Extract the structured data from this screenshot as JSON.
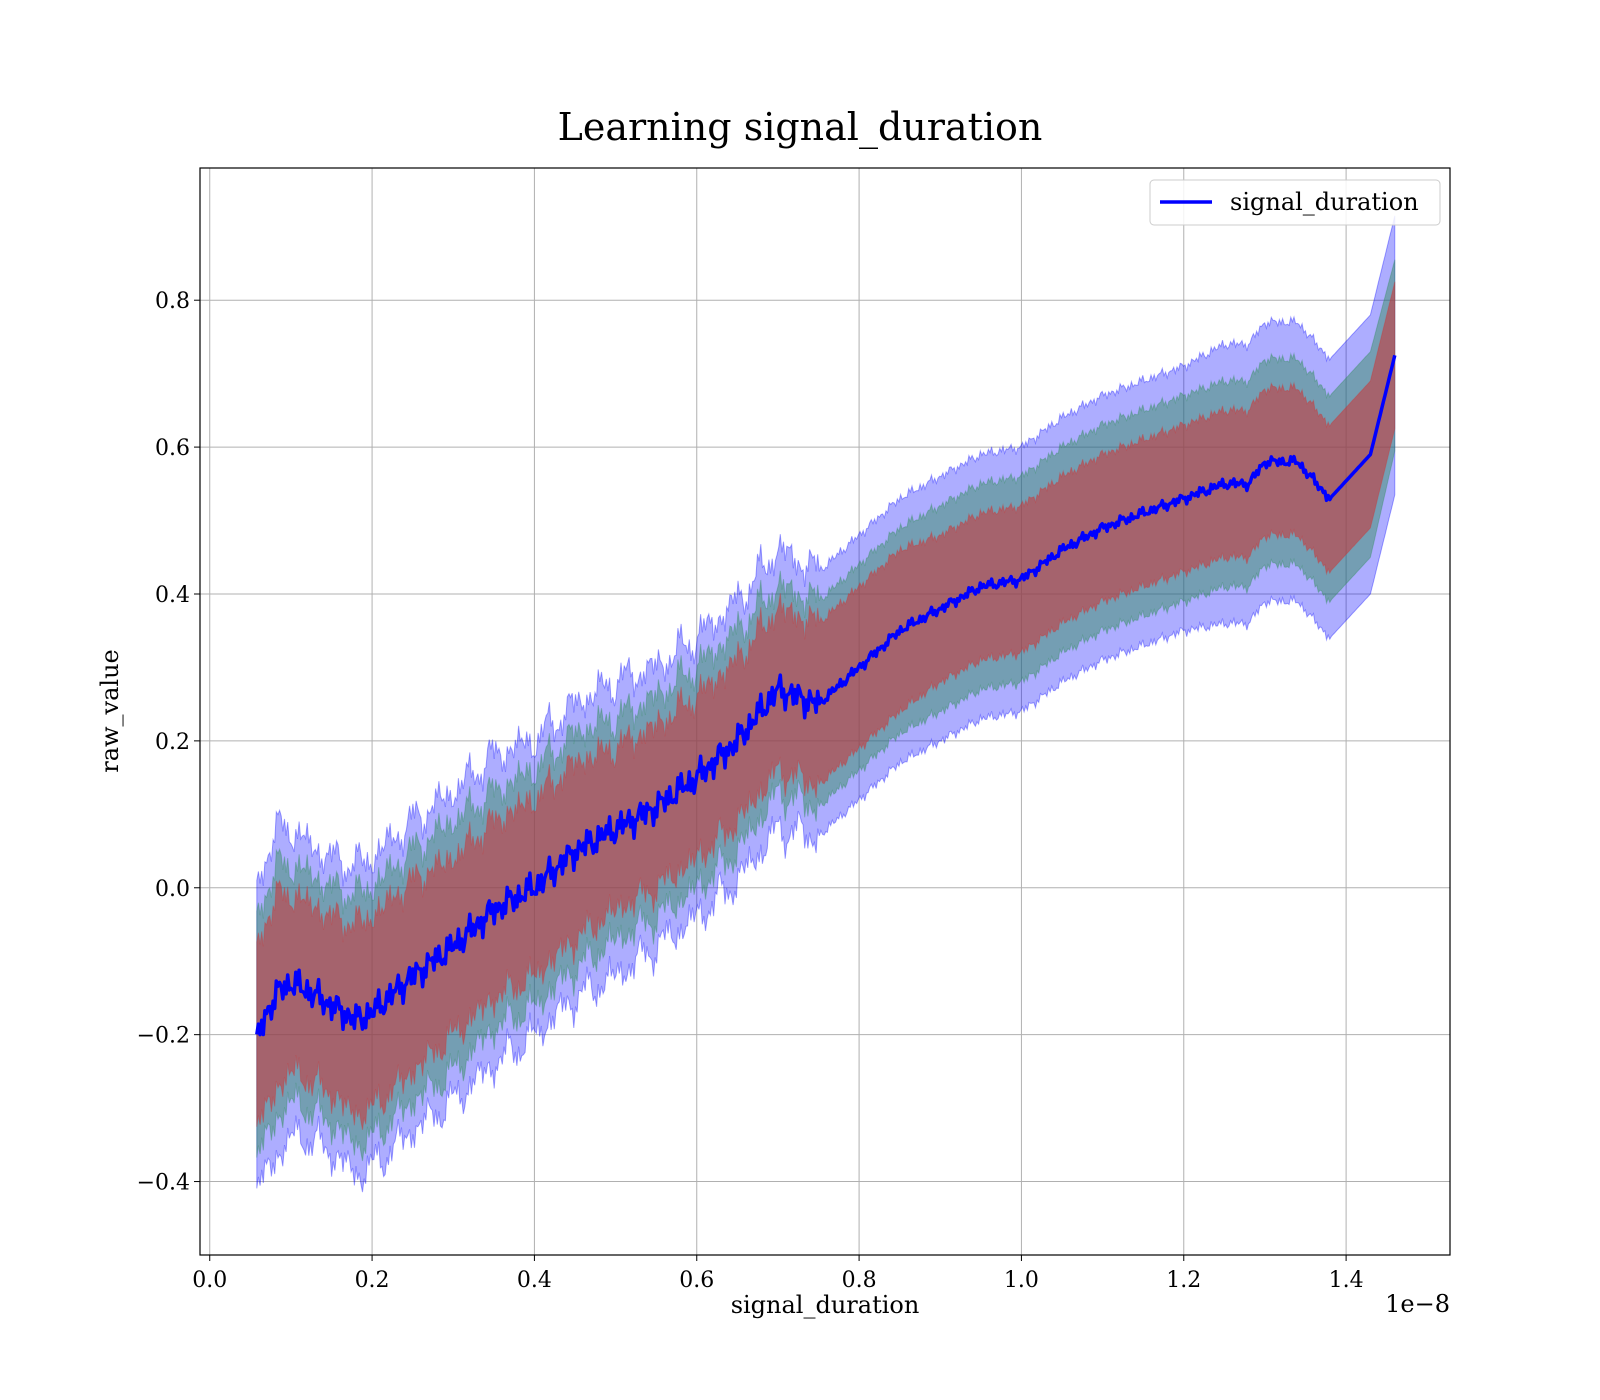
{
  "chart_data": {
    "type": "line",
    "title": "Learning signal_duration",
    "xlabel": "signal_duration",
    "ylabel": "raw_value",
    "x_offset_label": "1e−8",
    "xlim": [
      -0.012,
      1.528
    ],
    "ylim": [
      -0.5,
      0.98
    ],
    "x_ticks": [
      0.0,
      0.2,
      0.4,
      0.6,
      0.8,
      1.0,
      1.2,
      1.4
    ],
    "x_tick_labels": [
      "0.0",
      "0.2",
      "0.4",
      "0.6",
      "0.8",
      "1.0",
      "1.2",
      "1.4"
    ],
    "y_ticks": [
      -0.4,
      -0.2,
      0.0,
      0.2,
      0.4,
      0.6,
      0.8
    ],
    "y_tick_labels": [
      "−0.4",
      "−0.2",
      "0.0",
      "0.2",
      "0.4",
      "0.6",
      "0.8"
    ],
    "grid": true,
    "legend": {
      "position": "top-right",
      "entries": [
        {
          "label": "signal_duration",
          "color": "#0000ff"
        }
      ]
    },
    "band_colors": {
      "outer": "#0000ff",
      "middle": "#2e8b57",
      "inner": "#cd3333"
    },
    "series": [
      {
        "name": "signal_duration",
        "color": "#0000ff",
        "x": [
          0.058,
          0.07,
          0.085,
          0.1,
          0.12,
          0.15,
          0.18,
          0.2,
          0.25,
          0.3,
          0.35,
          0.4,
          0.45,
          0.5,
          0.55,
          0.6,
          0.65,
          0.7,
          0.75,
          0.8,
          0.85,
          0.9,
          0.95,
          1.0,
          1.05,
          1.1,
          1.15,
          1.2,
          1.25,
          1.28,
          1.3,
          1.34,
          1.38,
          1.43,
          1.46
        ],
        "y": [
          -0.21,
          -0.17,
          -0.14,
          -0.13,
          -0.14,
          -0.16,
          -0.18,
          -0.17,
          -0.12,
          -0.08,
          -0.03,
          0.0,
          0.05,
          0.08,
          0.11,
          0.15,
          0.2,
          0.27,
          0.25,
          0.3,
          0.35,
          0.38,
          0.41,
          0.42,
          0.46,
          0.49,
          0.51,
          0.53,
          0.55,
          0.55,
          0.58,
          0.58,
          0.53,
          0.59,
          0.725
        ],
        "band_outer_half_width": [
          0.2,
          0.22,
          0.22,
          0.21,
          0.2,
          0.2,
          0.21,
          0.21,
          0.21,
          0.21,
          0.21,
          0.2,
          0.2,
          0.2,
          0.19,
          0.19,
          0.19,
          0.19,
          0.18,
          0.18,
          0.18,
          0.18,
          0.18,
          0.18,
          0.18,
          0.18,
          0.18,
          0.18,
          0.19,
          0.19,
          0.19,
          0.19,
          0.19,
          0.19,
          0.19
        ],
        "band_middle_half_width": [
          0.16,
          0.17,
          0.17,
          0.16,
          0.16,
          0.16,
          0.17,
          0.17,
          0.17,
          0.17,
          0.16,
          0.16,
          0.16,
          0.15,
          0.15,
          0.15,
          0.15,
          0.14,
          0.14,
          0.14,
          0.14,
          0.14,
          0.14,
          0.14,
          0.14,
          0.14,
          0.14,
          0.14,
          0.14,
          0.14,
          0.14,
          0.14,
          0.14,
          0.14,
          0.13
        ],
        "band_inner_half_width": [
          0.12,
          0.13,
          0.13,
          0.12,
          0.12,
          0.12,
          0.13,
          0.13,
          0.13,
          0.12,
          0.12,
          0.12,
          0.12,
          0.11,
          0.11,
          0.11,
          0.11,
          0.11,
          0.11,
          0.11,
          0.11,
          0.1,
          0.1,
          0.1,
          0.1,
          0.1,
          0.1,
          0.1,
          0.1,
          0.1,
          0.1,
          0.1,
          0.1,
          0.1,
          0.1
        ]
      }
    ]
  }
}
